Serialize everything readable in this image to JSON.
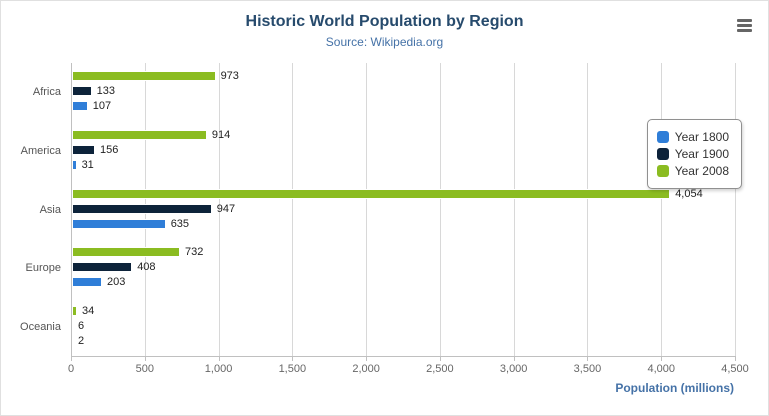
{
  "header": {
    "title": "Historic World Population by Region",
    "subtitle": "Source: Wikipedia.org"
  },
  "toolbar": {
    "context_menu_icon": "hamburger-icon"
  },
  "chart_data": {
    "type": "bar",
    "orientation": "horizontal",
    "title": "Historic World Population by Region",
    "subtitle": "Source: Wikipedia.org",
    "categories": [
      "Africa",
      "America",
      "Asia",
      "Europe",
      "Oceania"
    ],
    "series": [
      {
        "name": "Year 1800",
        "color": "#2f7ed8",
        "values": [
          107,
          31,
          635,
          203,
          2
        ]
      },
      {
        "name": "Year 1900",
        "color": "#0d233a",
        "values": [
          133,
          156,
          947,
          408,
          6
        ]
      },
      {
        "name": "Year 2008",
        "color": "#8bbc21",
        "values": [
          973,
          914,
          4054,
          732,
          34
        ]
      }
    ],
    "bar_order_top_to_bottom": [
      "Year 2008",
      "Year 1900",
      "Year 1800"
    ],
    "xlabel": "Population (millions)",
    "ylabel": "",
    "xlim": [
      0,
      4500
    ],
    "xticks": [
      0,
      500,
      1000,
      1500,
      2000,
      2500,
      3000,
      3500,
      4000,
      4500
    ],
    "xtick_labels": [
      "0",
      "500",
      "1,000",
      "1,500",
      "2,000",
      "2,500",
      "3,000",
      "3,500",
      "4,000",
      "4,500"
    ],
    "grid": true,
    "legend_position": "right",
    "legend_entries": [
      "Year 1800",
      "Year 1900",
      "Year 2008"
    ],
    "data_labels": true
  },
  "colors": {
    "title": "#274b6d",
    "subtitle": "#4572a7",
    "axis_line": "#c0c0c0",
    "gridline": "#d8d8d8",
    "tick_text": "#666666"
  }
}
